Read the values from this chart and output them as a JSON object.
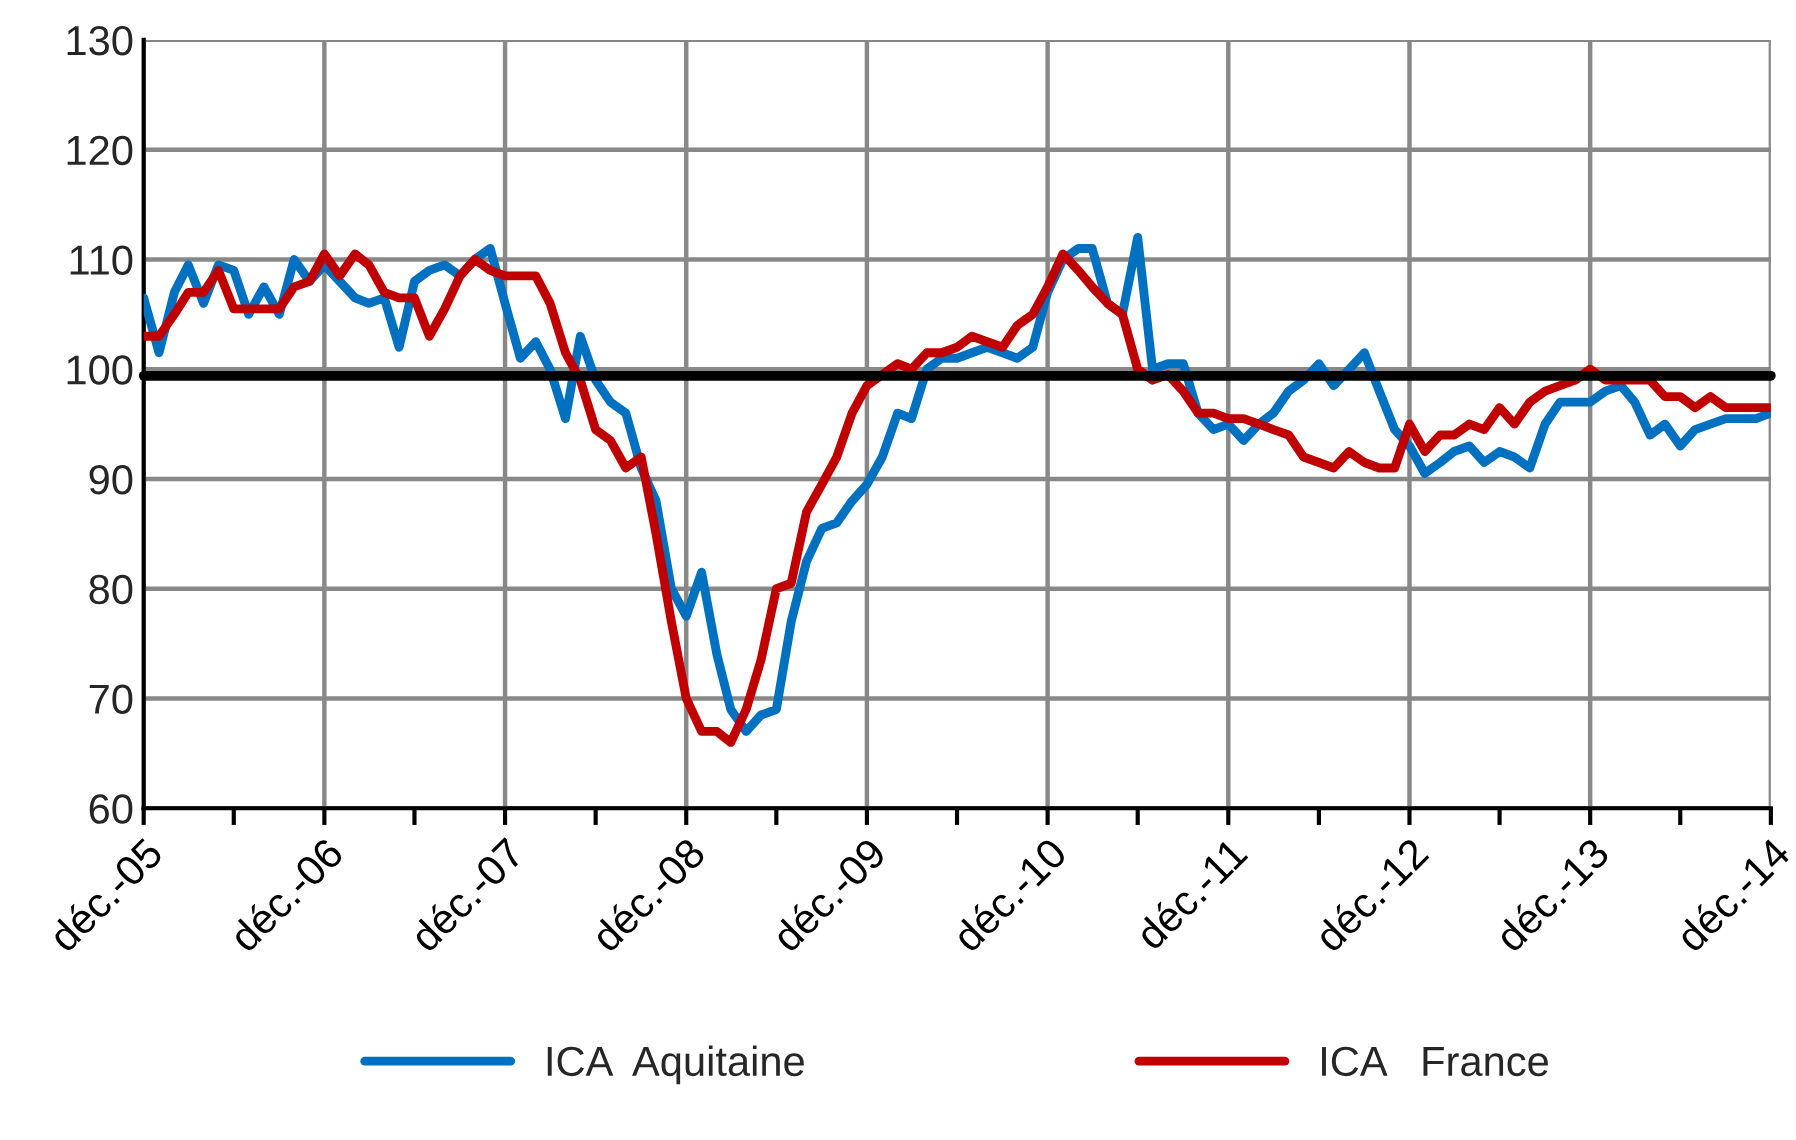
{
  "chart_data": {
    "type": "line",
    "x": [
      "2005-12",
      "2006-01",
      "2006-02",
      "2006-03",
      "2006-04",
      "2006-05",
      "2006-06",
      "2006-07",
      "2006-08",
      "2006-09",
      "2006-10",
      "2006-11",
      "2006-12",
      "2007-01",
      "2007-02",
      "2007-03",
      "2007-04",
      "2007-05",
      "2007-06",
      "2007-07",
      "2007-08",
      "2007-09",
      "2007-10",
      "2007-11",
      "2007-12",
      "2008-01",
      "2008-02",
      "2008-03",
      "2008-04",
      "2008-05",
      "2008-06",
      "2008-07",
      "2008-08",
      "2008-09",
      "2008-10",
      "2008-11",
      "2008-12",
      "2009-01",
      "2009-02",
      "2009-03",
      "2009-04",
      "2009-05",
      "2009-06",
      "2009-07",
      "2009-08",
      "2009-09",
      "2009-10",
      "2009-11",
      "2009-12",
      "2010-01",
      "2010-02",
      "2010-03",
      "2010-04",
      "2010-05",
      "2010-06",
      "2010-07",
      "2010-08",
      "2010-09",
      "2010-10",
      "2010-11",
      "2010-12",
      "2011-01",
      "2011-02",
      "2011-03",
      "2011-04",
      "2011-05",
      "2011-06",
      "2011-07",
      "2011-08",
      "2011-09",
      "2011-10",
      "2011-11",
      "2011-12",
      "2012-01",
      "2012-02",
      "2012-03",
      "2012-04",
      "2012-05",
      "2012-06",
      "2012-07",
      "2012-08",
      "2012-09",
      "2012-10",
      "2012-11",
      "2012-12",
      "2013-01",
      "2013-02",
      "2013-03",
      "2013-04",
      "2013-05",
      "2013-06",
      "2013-07",
      "2013-08",
      "2013-09",
      "2013-10",
      "2013-11",
      "2013-12",
      "2014-01",
      "2014-02",
      "2014-03",
      "2014-04",
      "2014-05",
      "2014-06",
      "2014-07",
      "2014-08",
      "2014-09",
      "2014-10",
      "2014-11",
      "2014-12"
    ],
    "series": [
      {
        "name": "ICA  Aquitaine",
        "color": "#0070c0",
        "values": [
          106.5,
          101.5,
          107,
          109.5,
          106,
          109.5,
          109,
          105,
          107.5,
          105,
          110,
          108,
          109.5,
          108,
          106.5,
          106,
          106.5,
          102,
          108,
          109,
          109.5,
          108.5,
          110,
          111,
          106,
          101,
          102.5,
          100,
          95.5,
          103,
          99,
          97,
          96,
          91,
          88,
          80,
          77.5,
          81.5,
          74,
          69,
          67,
          68.5,
          69,
          77,
          82.5,
          85.5,
          86,
          88,
          89.5,
          92,
          96,
          95.5,
          100,
          101,
          101,
          101.5,
          102,
          101.5,
          101,
          102,
          107,
          110,
          111,
          111,
          106,
          105,
          112,
          100,
          100.5,
          100.5,
          96,
          94.5,
          95,
          93.5,
          95,
          96,
          98,
          99,
          100.5,
          98.5,
          100,
          101.5,
          98,
          94.5,
          93,
          90.5,
          91.5,
          92.5,
          93,
          91.5,
          92.5,
          92,
          91,
          95,
          97,
          97,
          97,
          98,
          98.5,
          97,
          94,
          95,
          93,
          94.5,
          95,
          95.5,
          95.5,
          95.5,
          96
        ]
      },
      {
        "name": "ICA   France",
        "color": "#c00000",
        "values": [
          103,
          103,
          105,
          107,
          107,
          109,
          105.5,
          105.5,
          105.5,
          105.5,
          107.5,
          108,
          110.5,
          108.5,
          110.5,
          109.5,
          107,
          106.5,
          106.5,
          103,
          105.5,
          108.5,
          110,
          109,
          108.5,
          108.5,
          108.5,
          106,
          101.5,
          99,
          94.5,
          93.5,
          91,
          92,
          85,
          77,
          70,
          67,
          67,
          66,
          69,
          73.5,
          80,
          80.5,
          87,
          89.5,
          92,
          96,
          98.5,
          99.5,
          100.5,
          100,
          101.5,
          101.5,
          102,
          103,
          102.5,
          102,
          104,
          105,
          107.5,
          110.5,
          109,
          107.5,
          106,
          105,
          100,
          99,
          99.5,
          98,
          96,
          96,
          95.5,
          95.5,
          95,
          94.5,
          94,
          92,
          91.5,
          91,
          92.5,
          91.5,
          91,
          91,
          95,
          92.5,
          94,
          94,
          95,
          94.5,
          96.5,
          95,
          97,
          98,
          98.5,
          99,
          100,
          99,
          99,
          99,
          99,
          97.5,
          97.5,
          96.5,
          97.5,
          96.5,
          96.5,
          96.5,
          96.5
        ]
      }
    ],
    "xlim": [
      "2005-12",
      "2014-12"
    ],
    "xticks": [
      {
        "value": "2005-12",
        "label": "déc.-05"
      },
      {
        "value": "2006-06",
        "label": null
      },
      {
        "value": "2006-12",
        "label": "déc.-06"
      },
      {
        "value": "2007-06",
        "label": null
      },
      {
        "value": "2007-12",
        "label": "déc.-07"
      },
      {
        "value": "2008-06",
        "label": null
      },
      {
        "value": "2008-12",
        "label": "déc.-08"
      },
      {
        "value": "2009-06",
        "label": null
      },
      {
        "value": "2009-12",
        "label": "déc.-09"
      },
      {
        "value": "2010-06",
        "label": null
      },
      {
        "value": "2010-12",
        "label": "déc.-10"
      },
      {
        "value": "2011-06",
        "label": null
      },
      {
        "value": "2011-12",
        "label": "déc.-11"
      },
      {
        "value": "2012-06",
        "label": null
      },
      {
        "value": "2012-12",
        "label": "déc.-12"
      },
      {
        "value": "2013-06",
        "label": null
      },
      {
        "value": "2013-12",
        "label": "déc.-13"
      },
      {
        "value": "2014-06",
        "label": null
      },
      {
        "value": "2014-12",
        "label": "déc.-14"
      }
    ],
    "ylim": [
      60,
      130
    ],
    "yticks": [
      60,
      70,
      80,
      90,
      100,
      110,
      120,
      130
    ],
    "ref_lines": [
      {
        "axis": "y",
        "value": 99.4,
        "color": "#000000"
      }
    ],
    "grid": true,
    "legend": "bottom",
    "marker": "none",
    "line_style": "solid"
  }
}
